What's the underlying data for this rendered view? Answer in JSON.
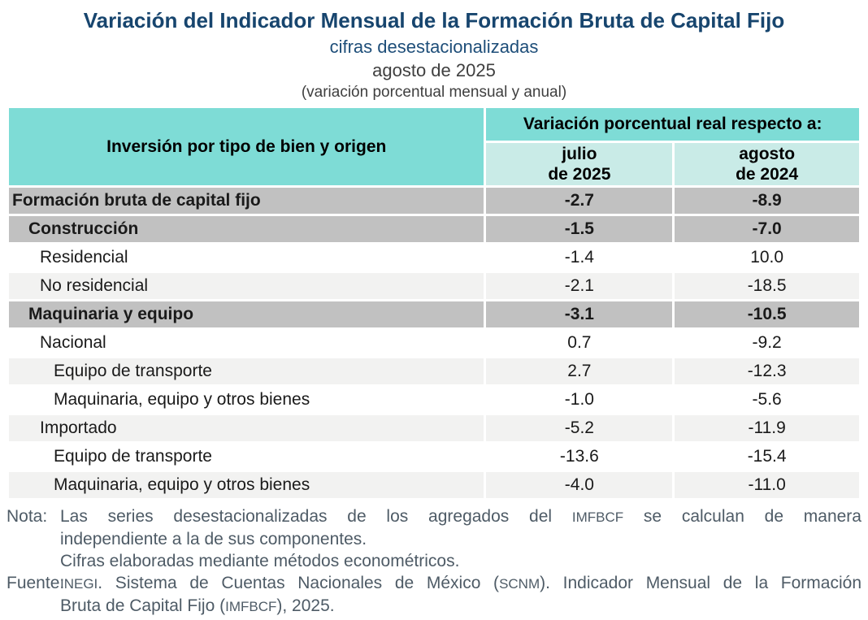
{
  "header": {
    "title": "Variación del Indicador Mensual de la Formación Bruta de Capital Fijo",
    "subtitle1": "cifras desestacionalizadas",
    "subtitle2": "agosto de 2025",
    "subtitle3": "(variación porcentual mensual y anual)"
  },
  "table": {
    "stub_header": "Inversión por tipo de bien y origen",
    "group_header": "Variación porcentual real respecto a:",
    "col_month": {
      "line1": "julio",
      "line2": "de 2025"
    },
    "col_year": {
      "line1": "agosto",
      "line2": "de 2024"
    },
    "rows": [
      {
        "label": "Formación bruta de capital fijo",
        "vs_prev_month": "-2.7",
        "vs_prev_year": "-8.9",
        "indent": 1,
        "style": "section"
      },
      {
        "label": "Construcción",
        "vs_prev_month": "-1.5",
        "vs_prev_year": "-7.0",
        "indent": 2,
        "style": "section"
      },
      {
        "label": "Residencial",
        "vs_prev_month": "-1.4",
        "vs_prev_year": "10.0",
        "indent": 3,
        "style": "white"
      },
      {
        "label": "No residencial",
        "vs_prev_month": "-2.1",
        "vs_prev_year": "-18.5",
        "indent": 3,
        "style": "alt"
      },
      {
        "label": "Maquinaria y equipo",
        "vs_prev_month": "-3.1",
        "vs_prev_year": "-10.5",
        "indent": 2,
        "style": "section"
      },
      {
        "label": "Nacional",
        "vs_prev_month": "0.7",
        "vs_prev_year": "-9.2",
        "indent": 3,
        "style": "white"
      },
      {
        "label": "Equipo de transporte",
        "vs_prev_month": "2.7",
        "vs_prev_year": "-12.3",
        "indent": 4,
        "style": "alt"
      },
      {
        "label": "Maquinaria, equipo y otros bienes",
        "vs_prev_month": "-1.0",
        "vs_prev_year": "-5.6",
        "indent": 4,
        "style": "white"
      },
      {
        "label": "Importado",
        "vs_prev_month": "-5.2",
        "vs_prev_year": "-11.9",
        "indent": 3,
        "style": "alt"
      },
      {
        "label": "Equipo de transporte",
        "vs_prev_month": "-13.6",
        "vs_prev_year": "-15.4",
        "indent": 4,
        "style": "white"
      },
      {
        "label": "Maquinaria, equipo y otros bienes",
        "vs_prev_month": "-4.0",
        "vs_prev_year": "-11.0",
        "indent": 4,
        "style": "alt"
      }
    ]
  },
  "notes": {
    "nota_label": "Nota:",
    "nota_line1": "Las series desestacionalizadas de los agregados del IMFBCF se calculan de manera",
    "nota_line2": "independiente a la de sus componentes.",
    "nota_line3": "Cifras elaboradas mediante métodos econométricos.",
    "fuente_label": "Fuente:",
    "fuente_line1": "INEGI. Sistema de Cuentas Nacionales de México (SCNM). Indicador Mensual de la Formación",
    "fuente_line2": "Bruta de Capital Fijo (IMFBCF), 2025."
  },
  "colors": {
    "title_navy": "#17456E",
    "subtitle_navy": "#1E4E79",
    "header_teal": "#7EDCD6",
    "subheader_teal": "#C9EBE7",
    "section_row_gray": "#C1C1C1",
    "alt_row_gray": "#F2F2F1",
    "note_text": "#4E5B66"
  }
}
